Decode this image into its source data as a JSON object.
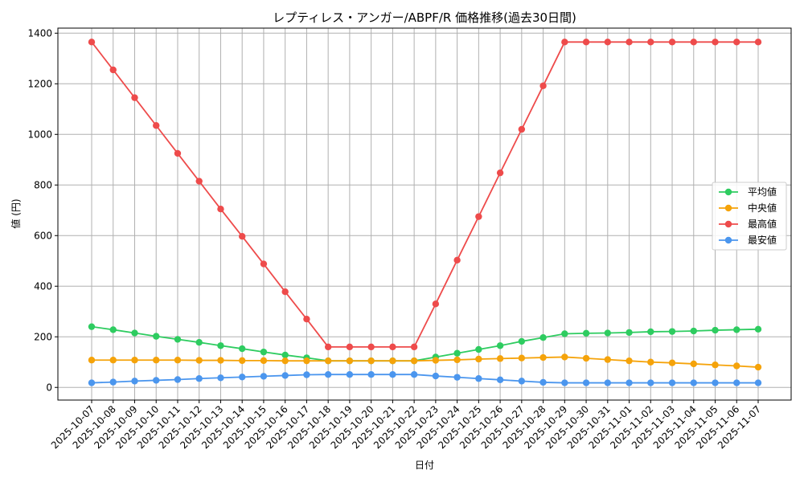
{
  "chart_data": {
    "type": "line",
    "title": "レプティレス・アンガー/ABPF/R 価格推移(過去30日間)",
    "xlabel": "日付",
    "ylabel": "値 (円)",
    "ylim": [
      -50,
      1420
    ],
    "yticks": [
      0,
      200,
      400,
      600,
      800,
      1000,
      1200,
      1400
    ],
    "grid": true,
    "legend_position": "right",
    "categories": [
      "2025-10-07",
      "2025-10-08",
      "2025-10-09",
      "2025-10-10",
      "2025-10-11",
      "2025-10-12",
      "2025-10-13",
      "2025-10-14",
      "2025-10-15",
      "2025-10-16",
      "2025-10-17",
      "2025-10-18",
      "2025-10-19",
      "2025-10-20",
      "2025-10-21",
      "2025-10-22",
      "2025-10-23",
      "2025-10-24",
      "2025-10-25",
      "2025-10-26",
      "2025-10-27",
      "2025-10-28",
      "2025-10-29",
      "2025-10-30",
      "2025-10-31",
      "2025-11-01",
      "2025-11-02",
      "2025-11-03",
      "2025-11-04",
      "2025-11-05",
      "2025-11-06",
      "2025-11-07"
    ],
    "series": [
      {
        "name": "平均値",
        "color": "#2ecc60",
        "values": [
          240,
          228,
          215,
          202,
          190,
          178,
          165,
          153,
          140,
          128,
          117,
          105,
          105,
          105,
          105,
          105,
          120,
          135,
          150,
          165,
          182,
          197,
          212,
          214,
          215,
          217,
          220,
          221,
          223,
          226,
          228,
          230
        ]
      },
      {
        "name": "中央値",
        "color": "#f5a30a",
        "values": [
          108,
          108,
          108,
          108,
          108,
          107,
          107,
          106,
          106,
          105,
          105,
          105,
          105,
          105,
          105,
          105,
          107,
          109,
          112,
          114,
          116,
          118,
          120,
          115,
          110,
          105,
          100,
          97,
          93,
          89,
          85,
          80
        ]
      },
      {
        "name": "最高値",
        "color": "#ee4b4b",
        "values": [
          1365,
          1255,
          1145,
          1035,
          925,
          815,
          705,
          597,
          488,
          378,
          270,
          160,
          160,
          160,
          160,
          160,
          330,
          503,
          675,
          848,
          1020,
          1192,
          1365,
          1365,
          1365,
          1365,
          1365,
          1365,
          1365,
          1365,
          1365,
          1365
        ]
      },
      {
        "name": "最安値",
        "color": "#4b96ee",
        "values": [
          18,
          21,
          25,
          28,
          31,
          35,
          38,
          41,
          44,
          47,
          50,
          51,
          51,
          51,
          51,
          51,
          45,
          40,
          35,
          30,
          25,
          20,
          18,
          18,
          18,
          18,
          18,
          18,
          18,
          18,
          18,
          18
        ]
      }
    ]
  }
}
